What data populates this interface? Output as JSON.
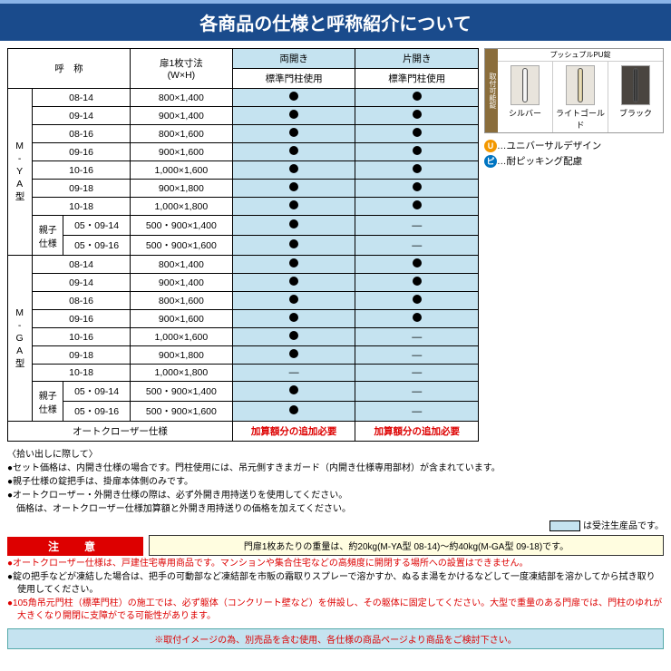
{
  "title": "各商品の仕様と呼称紹介について",
  "headers": {
    "name": "呼　称",
    "size": "扉1枚寸法\n(W×H)",
    "double": "両開き",
    "single": "片開き",
    "std": "標準門柱使用"
  },
  "groups": [
    {
      "label": "M-YA型",
      "rows": [
        {
          "name": "08-14",
          "size": "800×1,400",
          "d": "●",
          "s": "●"
        },
        {
          "name": "09-14",
          "size": "900×1,400",
          "d": "●",
          "s": "●"
        },
        {
          "name": "08-16",
          "size": "800×1,600",
          "d": "●",
          "s": "●"
        },
        {
          "name": "09-16",
          "size": "900×1,600",
          "d": "●",
          "s": "●"
        },
        {
          "name": "10-16",
          "size": "1,000×1,600",
          "d": "●",
          "s": "●"
        },
        {
          "name": "09-18",
          "size": "900×1,800",
          "d": "●",
          "s": "●"
        },
        {
          "name": "10-18",
          "size": "1,000×1,800",
          "d": "●",
          "s": "●"
        }
      ],
      "oyako": {
        "label": "親子\n仕様",
        "rows": [
          {
            "name": "05・09-14",
            "size": "500・900×1,400",
            "d": "●",
            "s": "—"
          },
          {
            "name": "05・09-16",
            "size": "500・900×1,600",
            "d": "●",
            "s": "—"
          }
        ]
      }
    },
    {
      "label": "M-GA型",
      "rows": [
        {
          "name": "08-14",
          "size": "800×1,400",
          "d": "●",
          "s": "●"
        },
        {
          "name": "09-14",
          "size": "900×1,400",
          "d": "●",
          "s": "●"
        },
        {
          "name": "08-16",
          "size": "800×1,600",
          "d": "●",
          "s": "●"
        },
        {
          "name": "09-16",
          "size": "900×1,600",
          "d": "●",
          "s": "●"
        },
        {
          "name": "10-16",
          "size": "1,000×1,600",
          "d": "●",
          "s": "—"
        },
        {
          "name": "09-18",
          "size": "900×1,800",
          "d": "●",
          "s": "—"
        },
        {
          "name": "10-18",
          "size": "1,000×1,800",
          "d": "—",
          "s": "—"
        }
      ],
      "oyako": {
        "label": "親子\n仕様",
        "rows": [
          {
            "name": "05・09-14",
            "size": "500・900×1,400",
            "d": "●",
            "s": "—"
          },
          {
            "name": "05・09-16",
            "size": "500・900×1,600",
            "d": "●",
            "s": "—"
          }
        ]
      }
    }
  ],
  "auto_closer": {
    "label": "オートクローザー仕様",
    "note": "加算額分の追加必要"
  },
  "locks": {
    "side": "取付可能錠",
    "title": "プッシュプルPU錠",
    "items": [
      {
        "label": "シルバー",
        "cls": "h-silver",
        "plate": ""
      },
      {
        "label": "ライトゴールド",
        "cls": "h-gold",
        "plate": ""
      },
      {
        "label": "ブラック",
        "cls": "h-black",
        "plate": "dark"
      }
    ]
  },
  "legend": {
    "u": "…ユニバーサルデザイン",
    "p": "…耐ピッキング配慮"
  },
  "notes_title": "〈拾い出しに際して〉",
  "notes": [
    "●セット価格は、内開き仕様の場合です。門柱使用には、吊元側すきまガード（内開き仕様専用部材）が含まれています。",
    "●親子仕様の錠把手は、掛扉本体側のみです。",
    "●オートクローザー・外開き仕様の際は、必ず外開き用持送りを使用してください。",
    "　価格は、オートクローザー仕様加算額と外開き用持送りの価格を加えてください。"
  ],
  "swatch_note": "は受注生産品です。",
  "caution_label": "注　意",
  "weight_note": "門扉1枚あたりの重量は、約20kg(M-YA型 08-14)〜約40kg(M-GA型 09-18)です。",
  "cautions": [
    {
      "t": "●オートクローザー仕様は、戸建住宅専用商品です。マンションや集合住宅などの高頻度に開閉する場所への設置はできません。",
      "c": "rd"
    },
    {
      "t": "●錠の把手などが凍結した場合は、把手の可動部など凍結部を市販の霜取りスプレーで溶かすか、ぬるま湯をかけるなどして一度凍結部を溶かしてから拭き取り使用してください。",
      "c": ""
    },
    {
      "t": "●105角吊元門柱（標準門柱）の施工では、必ず躯体（コンクリート壁など）を併設し、その躯体に固定してください。大型で重量のある門扉では、門柱のゆれが大きくなり開閉に支障がでる可能性があります。",
      "c": "rd"
    }
  ],
  "footer": "※取付イメージの為、別売品を含む使用、各仕様の商品ページより商品をご検討下さい。"
}
